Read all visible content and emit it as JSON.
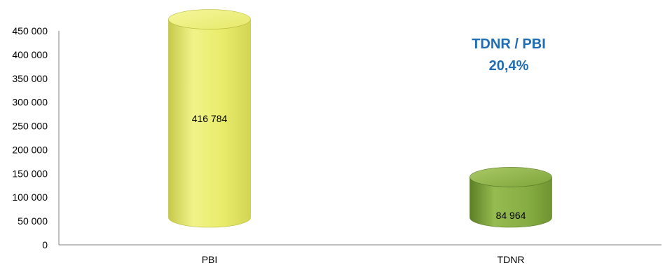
{
  "chart_data": {
    "type": "bar",
    "style": "3d-cylinder",
    "categories": [
      "PBI",
      "TDNR"
    ],
    "values": [
      416784,
      84964
    ],
    "value_labels": [
      "416 784",
      "84 964"
    ],
    "y_ticks": [
      "0",
      "50 000",
      "100 000",
      "150 000",
      "200 000",
      "250 000",
      "300 000",
      "350 000",
      "400 000",
      "450 000"
    ],
    "ylim": [
      0,
      450000
    ],
    "grid": false,
    "bar_colors": [
      "#e8ec6e",
      "#7fa63c"
    ],
    "annotation": {
      "line1": "TDNR / PBI",
      "line2": "20,4%",
      "color": "#1f6db5"
    }
  }
}
